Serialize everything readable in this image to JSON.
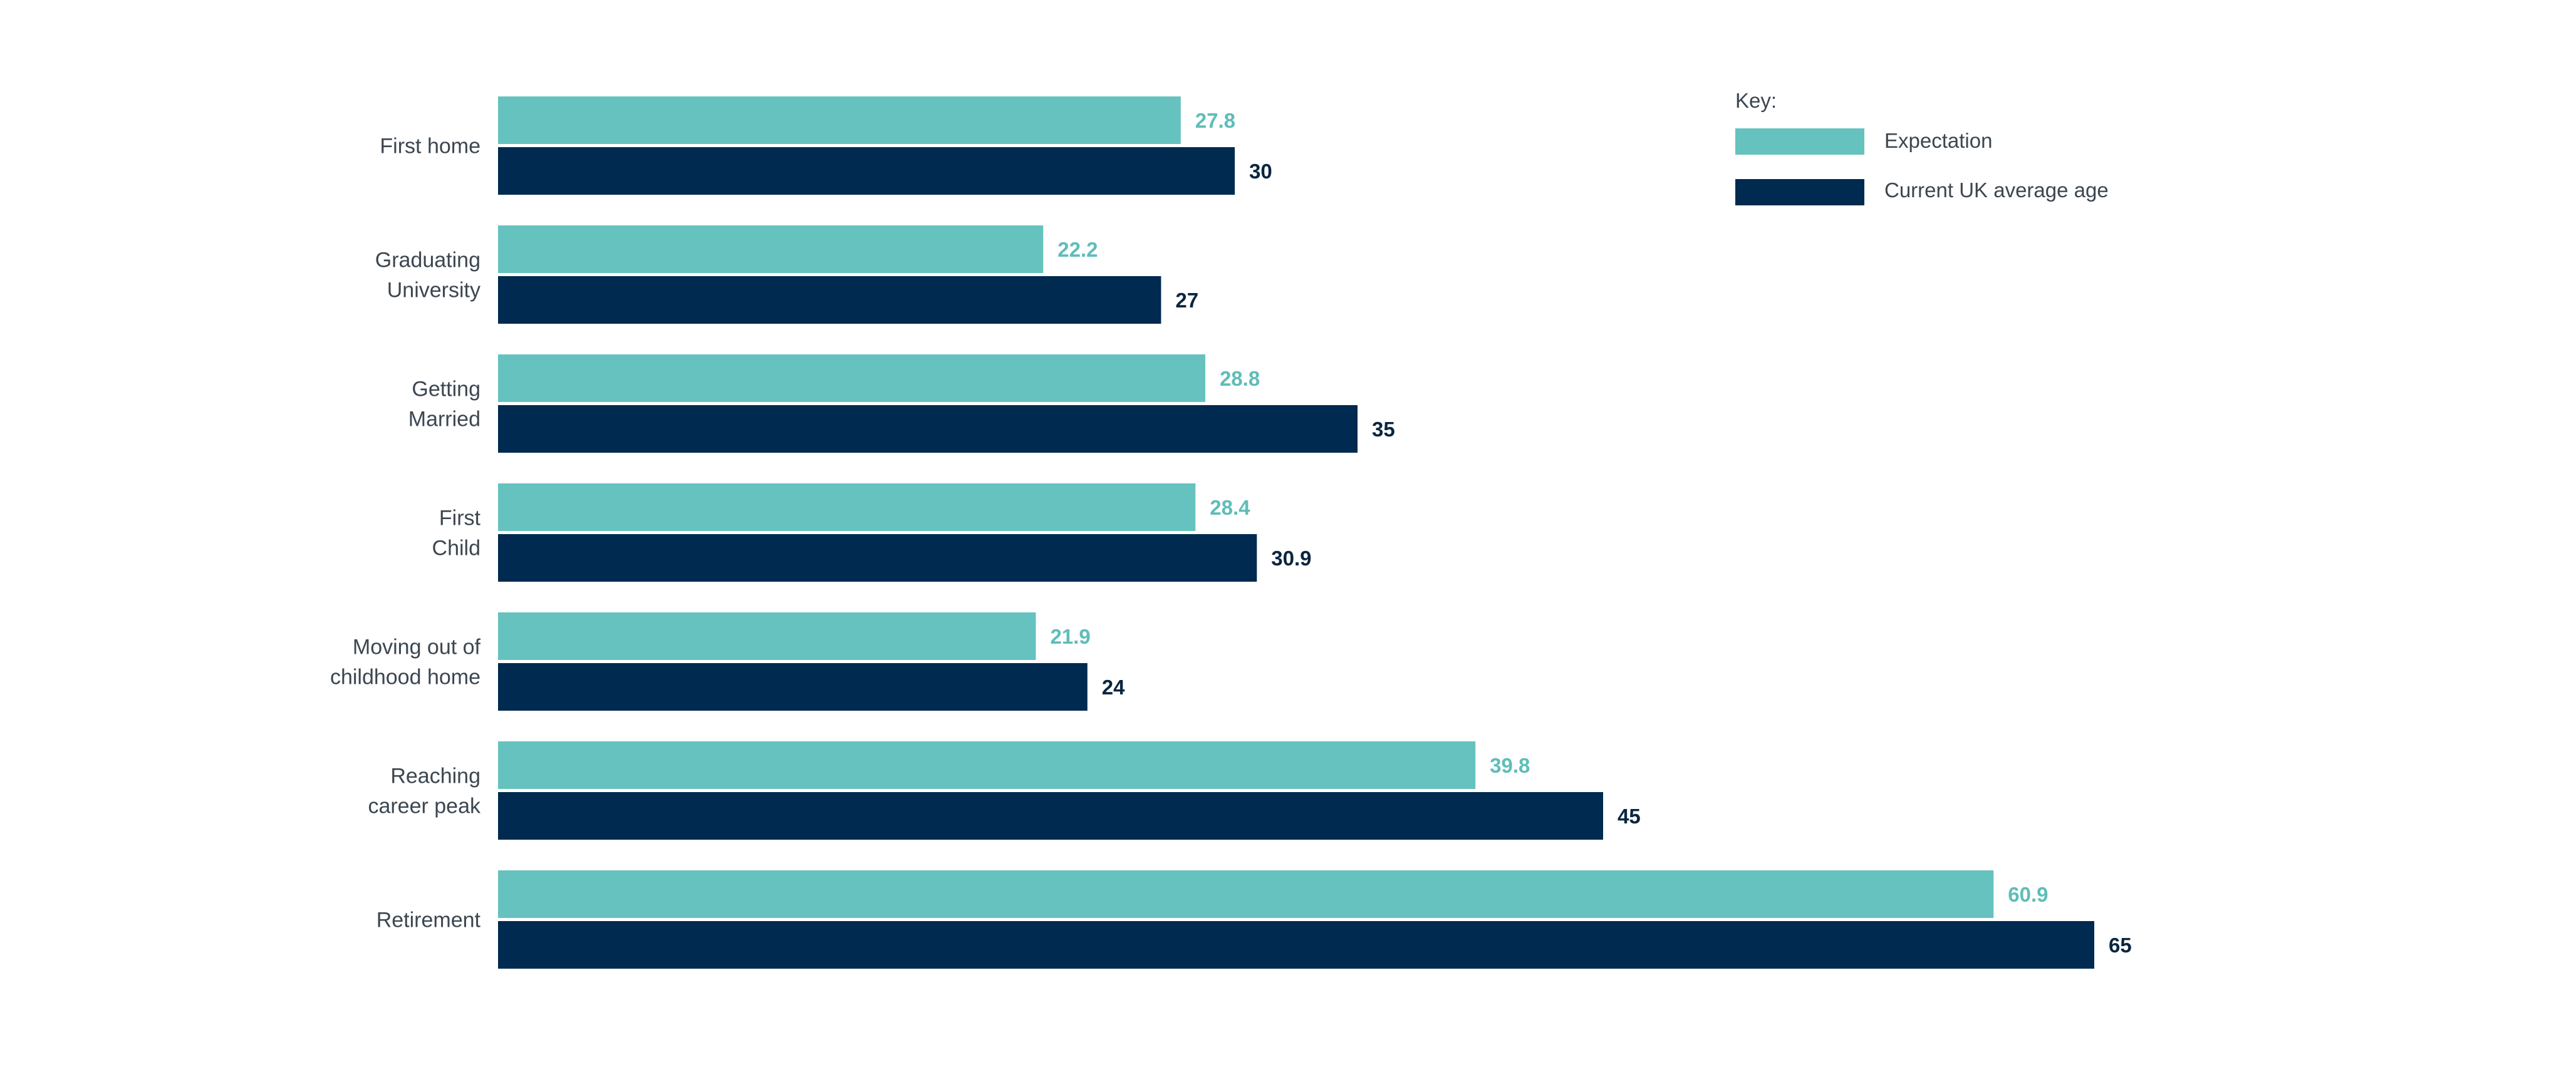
{
  "chart_data": {
    "type": "bar",
    "orientation": "horizontal",
    "categories": [
      [
        "First home"
      ],
      [
        "Graduating",
        "University"
      ],
      [
        "Getting",
        "Married"
      ],
      [
        "First",
        "Child"
      ],
      [
        "Moving out of",
        "childhood home"
      ],
      [
        "Reaching",
        "career peak"
      ],
      [
        "Retirement"
      ]
    ],
    "series": [
      {
        "name": "Expectation",
        "color": "#66c2be",
        "values": [
          27.8,
          22.2,
          28.8,
          28.4,
          21.9,
          39.8,
          60.9
        ]
      },
      {
        "name": "Current UK average age",
        "color": "#002a4f",
        "values": [
          30,
          27,
          35,
          30.9,
          24,
          45,
          65
        ]
      }
    ],
    "xlim": [
      0,
      65
    ],
    "grid": false,
    "data_labels": true,
    "legend": {
      "title": "Key:",
      "placement": "top-right"
    }
  }
}
